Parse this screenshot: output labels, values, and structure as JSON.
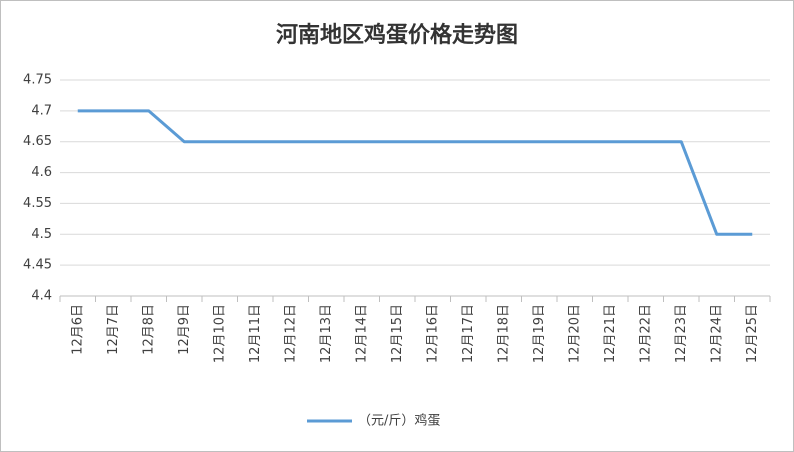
{
  "chart_data": {
    "type": "line",
    "title": "河南地区鸡蛋价格走势图",
    "categories": [
      "12月6日",
      "12月7日",
      "12月8日",
      "12月9日",
      "12月10日",
      "12月11日",
      "12月12日",
      "12月13日",
      "12月14日",
      "12月15日",
      "12月16日",
      "12月17日",
      "12月18日",
      "12月19日",
      "12月20日",
      "12月21日",
      "12月22日",
      "12月23日",
      "12月24日",
      "12月25日"
    ],
    "series": [
      {
        "name": "（元/斤）鸡蛋",
        "color": "#5b9bd5",
        "values": [
          4.7,
          4.7,
          4.7,
          4.65,
          4.65,
          4.65,
          4.65,
          4.65,
          4.65,
          4.65,
          4.65,
          4.65,
          4.65,
          4.65,
          4.65,
          4.65,
          4.65,
          4.65,
          4.5,
          4.5
        ]
      }
    ],
    "ylim": [
      4.4,
      4.75
    ],
    "yticks": [
      4.4,
      4.45,
      4.5,
      4.55,
      4.6,
      4.65,
      4.7,
      4.75
    ],
    "grid": true,
    "legend": "bottom"
  }
}
